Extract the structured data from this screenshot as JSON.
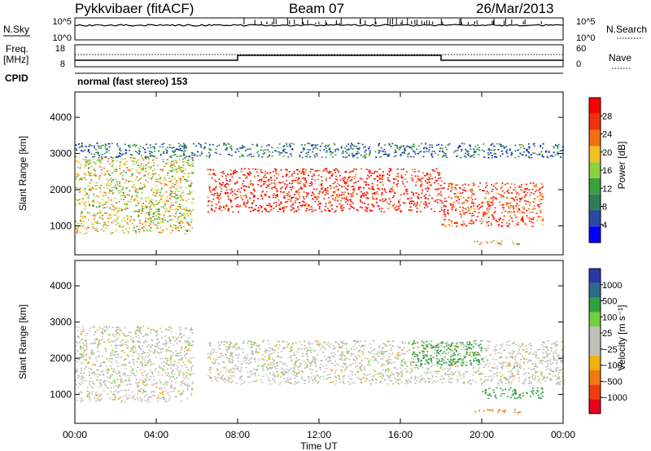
{
  "header": {
    "station": "Pykkvibaer (fitACF)",
    "beam": "Beam 07",
    "date": "26/Mar/2013"
  },
  "panels": {
    "nsky": {
      "left_label": "N.Sky",
      "left_ticks": [
        "10^5",
        "10^0"
      ],
      "right_label": "N.Search",
      "right_ticks": [
        "10^5",
        "10^0"
      ]
    },
    "freq": {
      "left_label_1": "Freq.",
      "left_label_2": "[MHz]",
      "left_ticks": [
        "18",
        "8"
      ],
      "right_label": "Nave",
      "right_ticks": [
        "60",
        "0"
      ]
    },
    "cpid": {
      "label": "CPID",
      "text": "normal (fast stereo) 153"
    }
  },
  "colors": {
    "power": [
      "#0000ff",
      "#2a4aa5",
      "#2e7d5a",
      "#3aa040",
      "#8fd040",
      "#f0c020",
      "#f07010",
      "#f03010",
      "#ff0000"
    ],
    "velocity": [
      "#e8001c",
      "#f03a10",
      "#f07a10",
      "#f0b010",
      "#c0c0b8",
      "#c0c0b8",
      "#70d040",
      "#30a040",
      "#2e6a8a",
      "#2a3aa5"
    ]
  },
  "chart_data": [
    {
      "type": "heatmap",
      "name": "power",
      "ylabel": "Slant Range [km]",
      "yticks": [
        "4000",
        "3000",
        "2000",
        "1000"
      ],
      "ylim": [
        200,
        4700
      ],
      "xlim": [
        0,
        24
      ],
      "colorbar": {
        "label": "Power [dB]",
        "ticks": [
          "28",
          "24",
          "20",
          "16",
          "12",
          "8",
          "4"
        ],
        "range": [
          0,
          32
        ]
      },
      "echo_regions": [
        {
          "t_start": 0.0,
          "t_end": 5.8,
          "r_low": 800,
          "r_high": 2900,
          "level": 18
        },
        {
          "t_start": 6.5,
          "t_end": 18.0,
          "r_low": 1400,
          "r_high": 2600,
          "level": 28
        },
        {
          "t_start": 18.0,
          "t_end": 23.0,
          "r_low": 1000,
          "r_high": 2200,
          "level": 26
        },
        {
          "t_start": 19.5,
          "t_end": 22.0,
          "r_low": 500,
          "r_high": 600,
          "level": 20
        },
        {
          "t_start": 0.0,
          "t_end": 24.0,
          "r_low": 2900,
          "r_high": 3300,
          "level": 8
        }
      ]
    },
    {
      "type": "heatmap",
      "name": "velocity",
      "ylabel": "Slant Range [km]",
      "xlabel": "Time UT",
      "yticks": [
        "4000",
        "3000",
        "2000",
        "1000"
      ],
      "xticks": [
        "00:00",
        "04:00",
        "08:00",
        "12:00",
        "16:00",
        "20:00",
        "00:00"
      ],
      "ylim": [
        200,
        4700
      ],
      "xlim": [
        0,
        24
      ],
      "colorbar": {
        "label": "Velocity [m s⁻¹]",
        "ticks": [
          "1000",
          "500",
          "100",
          "25",
          "−25",
          "−100",
          "−500",
          "−1000"
        ]
      },
      "echo_regions": [
        {
          "t_start": 0.0,
          "t_end": 5.8,
          "r_low": 800,
          "r_high": 2900,
          "velocity": 0
        },
        {
          "t_start": 6.5,
          "t_end": 24.0,
          "r_low": 1300,
          "r_high": 2500,
          "velocity": 0
        },
        {
          "t_start": 19.5,
          "t_end": 22.0,
          "r_low": 500,
          "r_high": 600,
          "velocity": -300
        },
        {
          "t_start": 20.0,
          "t_end": 23.0,
          "r_low": 900,
          "r_high": 1200,
          "velocity": 200
        },
        {
          "t_start": 16.5,
          "t_end": 20.0,
          "r_low": 1800,
          "r_high": 2500,
          "velocity": 150
        }
      ]
    }
  ],
  "axes": {
    "xlabel": "Time UT"
  }
}
